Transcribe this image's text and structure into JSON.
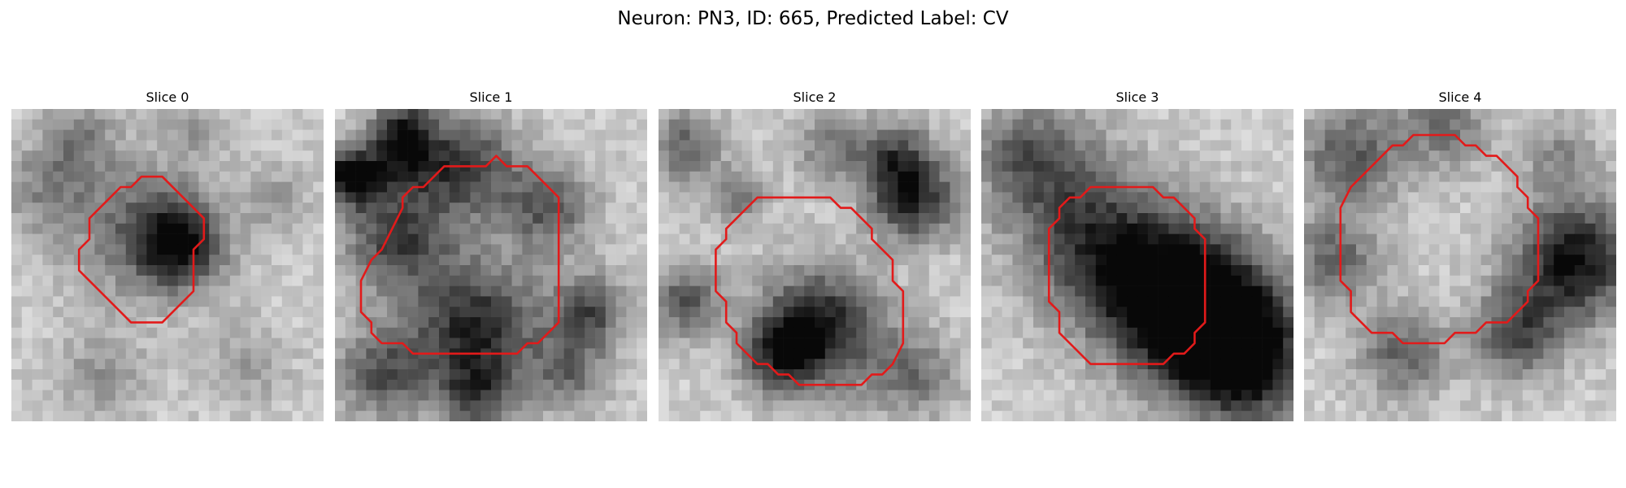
{
  "figure": {
    "title": "Neuron: PN3, ID: 665, Predicted Label: CV"
  },
  "panels": [
    {
      "title": "Slice 0",
      "contour_color": "#e21a1a",
      "contour": [
        [
          12.5,
          6.5
        ],
        [
          14.5,
          6.5
        ],
        [
          17.5,
          9.5
        ],
        [
          18.5,
          10.5
        ],
        [
          18.5,
          12.5
        ],
        [
          17.5,
          13.5
        ],
        [
          17.5,
          17.5
        ],
        [
          14.5,
          20.5
        ],
        [
          11.5,
          20.5
        ],
        [
          7.5,
          16.5
        ],
        [
          6.5,
          15.5
        ],
        [
          6.5,
          13.5
        ],
        [
          7.5,
          12.5
        ],
        [
          7.5,
          10.5
        ],
        [
          9.5,
          8.5
        ],
        [
          10.5,
          7.5
        ],
        [
          11.5,
          7.5
        ]
      ],
      "blobs": [
        {
          "x": 15.5,
          "y": 12.5,
          "r": 3.0,
          "d": 0.7
        },
        {
          "x": 11,
          "y": 10.5,
          "r": 5.0,
          "d": 0.3
        },
        {
          "x": 3,
          "y": 7,
          "r": 3.0,
          "d": 0.25
        },
        {
          "x": 6,
          "y": 2,
          "r": 2.5,
          "d": 0.25
        },
        {
          "x": 17,
          "y": 1.5,
          "r": 2.0,
          "d": 0.2
        },
        {
          "x": 25,
          "y": 8,
          "r": 2.5,
          "d": 0.18
        },
        {
          "x": 8,
          "y": 25,
          "r": 3.0,
          "d": 0.22
        },
        {
          "x": 22,
          "y": 24,
          "r": 3.0,
          "d": 0.18
        }
      ]
    },
    {
      "title": "Slice 1",
      "contour_color": "#e21a1a",
      "contour": [
        [
          15.5,
          4.5
        ],
        [
          16.5,
          5.5
        ],
        [
          18.5,
          5.5
        ],
        [
          21.5,
          8.5
        ],
        [
          21.5,
          20.5
        ],
        [
          19.5,
          22.5
        ],
        [
          18.5,
          22.5
        ],
        [
          17.5,
          23.5
        ],
        [
          7.5,
          23.5
        ],
        [
          6.5,
          22.5
        ],
        [
          4.5,
          22.5
        ],
        [
          3.5,
          21.5
        ],
        [
          3.5,
          20.5
        ],
        [
          2.5,
          19.5
        ],
        [
          2.5,
          16.5
        ],
        [
          3.5,
          14.5
        ],
        [
          4.5,
          13.5
        ],
        [
          5.5,
          11.5
        ],
        [
          6.5,
          9.5
        ],
        [
          6.5,
          8.5
        ],
        [
          7.5,
          7.5
        ],
        [
          8.5,
          7.5
        ],
        [
          10.5,
          5.5
        ],
        [
          14.5,
          5.5
        ]
      ],
      "blobs": [
        {
          "x": 12,
          "y": 5,
          "r": 3.5,
          "d": 0.55
        },
        {
          "x": 5.5,
          "y": 12,
          "r": 3.5,
          "d": 0.55
        },
        {
          "x": 13,
          "y": 20.5,
          "r": 4.5,
          "d": 0.65
        },
        {
          "x": 20,
          "y": 9,
          "r": 3.0,
          "d": 0.45
        },
        {
          "x": 1,
          "y": 6,
          "r": 2.0,
          "d": 0.8
        },
        {
          "x": 6,
          "y": 4,
          "r": 2.5,
          "d": 0.5
        },
        {
          "x": 4,
          "y": 25,
          "r": 3.0,
          "d": 0.45
        },
        {
          "x": 24,
          "y": 19,
          "r": 2.5,
          "d": 0.5
        },
        {
          "x": 13,
          "y": 27,
          "r": 2.5,
          "d": 0.4
        },
        {
          "x": 22,
          "y": 25,
          "r": 2.5,
          "d": 0.35
        },
        {
          "x": 6,
          "y": 1,
          "r": 2.0,
          "d": 0.4
        }
      ]
    },
    {
      "title": "Slice 2",
      "contour_color": "#e21a1a",
      "contour": [
        [
          9.5,
          8.5
        ],
        [
          16.5,
          8.5
        ],
        [
          17.5,
          9.5
        ],
        [
          18.5,
          9.5
        ],
        [
          20.5,
          11.5
        ],
        [
          20.5,
          12.5
        ],
        [
          22.5,
          14.5
        ],
        [
          22.5,
          16.5
        ],
        [
          23.5,
          17.5
        ],
        [
          23.5,
          22.5
        ],
        [
          22.5,
          24.5
        ],
        [
          21.5,
          25.5
        ],
        [
          20.5,
          25.5
        ],
        [
          19.5,
          26.5
        ],
        [
          13.5,
          26.5
        ],
        [
          12.5,
          25.5
        ],
        [
          11.5,
          25.5
        ],
        [
          10.5,
          24.5
        ],
        [
          9.5,
          24.5
        ],
        [
          7.5,
          22.5
        ],
        [
          7.5,
          21.5
        ],
        [
          6.5,
          20.5
        ],
        [
          6.5,
          18.5
        ],
        [
          5.5,
          17.5
        ],
        [
          5.5,
          13.5
        ],
        [
          6.5,
          12.5
        ],
        [
          6.5,
          11.5
        ],
        [
          8.5,
          9.5
        ]
      ],
      "blobs": [
        {
          "x": 15,
          "y": 20.5,
          "r": 4.0,
          "d": 0.7
        },
        {
          "x": 11,
          "y": 23,
          "r": 2.5,
          "d": 0.5
        },
        {
          "x": 24,
          "y": 8,
          "r": 3.0,
          "d": 0.65
        },
        {
          "x": 22,
          "y": 4,
          "r": 2.5,
          "d": 0.4
        },
        {
          "x": 2,
          "y": 3,
          "r": 2.5,
          "d": 0.4
        },
        {
          "x": 2,
          "y": 18,
          "r": 2.5,
          "d": 0.45
        },
        {
          "x": 16,
          "y": 3,
          "r": 2.5,
          "d": 0.3
        },
        {
          "x": 24,
          "y": 25,
          "r": 3.0,
          "d": 0.35
        },
        {
          "x": 7,
          "y": 8,
          "r": 2.0,
          "d": 0.3
        }
      ]
    },
    {
      "title": "Slice 3",
      "contour_color": "#e21a1a",
      "contour": [
        [
          10.5,
          7.5
        ],
        [
          16.5,
          7.5
        ],
        [
          17.5,
          8.5
        ],
        [
          18.5,
          8.5
        ],
        [
          20.5,
          10.5
        ],
        [
          20.5,
          11.5
        ],
        [
          21.5,
          12.5
        ],
        [
          21.5,
          20.5
        ],
        [
          20.5,
          21.5
        ],
        [
          20.5,
          22.5
        ],
        [
          19.5,
          23.5
        ],
        [
          18.5,
          23.5
        ],
        [
          17.5,
          24.5
        ],
        [
          10.5,
          24.5
        ],
        [
          8.5,
          22.5
        ],
        [
          7.5,
          21.5
        ],
        [
          7.5,
          19.5
        ],
        [
          6.5,
          18.5
        ],
        [
          6.5,
          11.5
        ],
        [
          7.5,
          10.5
        ],
        [
          7.5,
          9.5
        ],
        [
          8.5,
          8.5
        ],
        [
          9.5,
          8.5
        ]
      ],
      "blobs": [
        {
          "x": 22,
          "y": 20,
          "r": 5.0,
          "d": 0.8
        },
        {
          "x": 17,
          "y": 17,
          "r": 5.0,
          "d": 0.6
        },
        {
          "x": 11,
          "y": 13,
          "r": 5.0,
          "d": 0.45
        },
        {
          "x": 6,
          "y": 6,
          "r": 4.5,
          "d": 0.35
        },
        {
          "x": 25,
          "y": 24,
          "r": 4.0,
          "d": 0.6
        },
        {
          "x": 3,
          "y": 3,
          "r": 3.0,
          "d": 0.2
        }
      ]
    },
    {
      "title": "Slice 4",
      "contour_color": "#e21a1a",
      "contour": [
        [
          10.5,
          2.5
        ],
        [
          14.5,
          2.5
        ],
        [
          15.5,
          3.5
        ],
        [
          16.5,
          3.5
        ],
        [
          17.5,
          4.5
        ],
        [
          18.5,
          4.5
        ],
        [
          20.5,
          6.5
        ],
        [
          20.5,
          7.5
        ],
        [
          21.5,
          8.5
        ],
        [
          21.5,
          9.5
        ],
        [
          22.5,
          10.5
        ],
        [
          22.5,
          16.5
        ],
        [
          21.5,
          17.5
        ],
        [
          21.5,
          18.5
        ],
        [
          20.5,
          19.5
        ],
        [
          19.5,
          20.5
        ],
        [
          17.5,
          20.5
        ],
        [
          16.5,
          21.5
        ],
        [
          14.5,
          21.5
        ],
        [
          13.5,
          22.5
        ],
        [
          9.5,
          22.5
        ],
        [
          8.5,
          21.5
        ],
        [
          6.5,
          21.5
        ],
        [
          4.5,
          19.5
        ],
        [
          4.5,
          17.5
        ],
        [
          3.5,
          16.5
        ],
        [
          3.5,
          9.5
        ],
        [
          4.5,
          7.5
        ],
        [
          7.5,
          4.5
        ],
        [
          8.5,
          3.5
        ],
        [
          9.5,
          3.5
        ]
      ],
      "blobs": [
        {
          "x": 25.5,
          "y": 14,
          "r": 4.0,
          "d": 0.75
        },
        {
          "x": 4,
          "y": 4,
          "r": 3.5,
          "d": 0.45
        },
        {
          "x": 2.5,
          "y": 14,
          "r": 3.0,
          "d": 0.4
        },
        {
          "x": 13,
          "y": 1,
          "r": 3.0,
          "d": 0.35
        },
        {
          "x": 20,
          "y": 21,
          "r": 3.0,
          "d": 0.5
        },
        {
          "x": 9,
          "y": 23,
          "r": 3.0,
          "d": 0.4
        },
        {
          "x": 24,
          "y": 4,
          "r": 2.5,
          "d": 0.25
        }
      ]
    }
  ]
}
